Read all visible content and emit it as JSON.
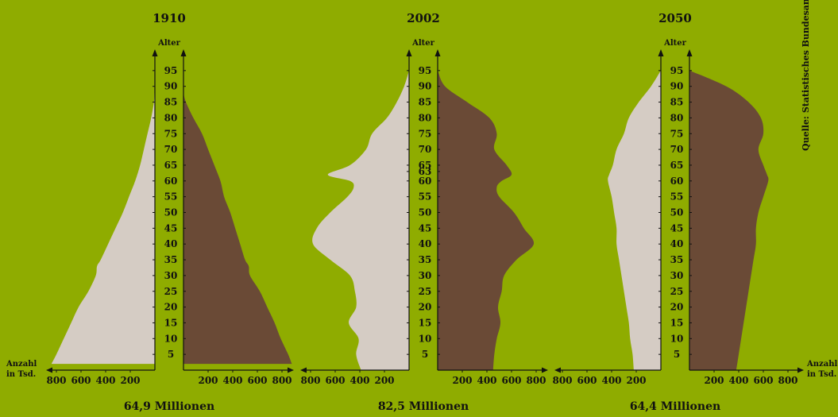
{
  "source": "Quelle: Statistisches Bundesamt",
  "axis_left_label": [
    "Anzahl",
    "in Tsd."
  ],
  "axis_right_label": [
    "Anzahl",
    "in Tsd."
  ],
  "colors": {
    "background": "#8fac00",
    "left_shape": "#d5ccc4",
    "right_shape": "#6a4a36",
    "axis": "#111111"
  },
  "chart_data": [
    {
      "type": "area",
      "title": "1910",
      "ylabel": "Alter",
      "total": "64,9 Millionen",
      "age_ticks": [
        5,
        10,
        15,
        20,
        25,
        30,
        35,
        40,
        45,
        50,
        55,
        60,
        65,
        70,
        75,
        80,
        85,
        90,
        95
      ],
      "x_ticks": [
        200,
        400,
        600,
        800
      ],
      "age_range": [
        0,
        95
      ],
      "age": [
        2,
        5,
        10,
        15,
        20,
        25,
        30,
        33,
        35,
        40,
        45,
        50,
        55,
        60,
        65,
        70,
        75,
        80,
        85,
        88,
        90
      ],
      "left_values": [
        840,
        800,
        740,
        680,
        620,
        540,
        480,
        470,
        440,
        380,
        320,
        260,
        210,
        160,
        120,
        90,
        60,
        30,
        8,
        3,
        0
      ],
      "right_values": [
        880,
        850,
        790,
        740,
        680,
        620,
        540,
        530,
        500,
        460,
        420,
        380,
        330,
        300,
        250,
        200,
        150,
        80,
        20,
        0,
        0
      ]
    },
    {
      "type": "area",
      "title": "2002",
      "ylabel": "Alter",
      "total": "82,5 Millionen",
      "age_ticks": [
        5,
        10,
        15,
        20,
        25,
        30,
        35,
        40,
        45,
        50,
        55,
        60,
        63,
        65,
        70,
        75,
        80,
        85,
        90,
        95
      ],
      "x_ticks": [
        200,
        400,
        600,
        800
      ],
      "age_range": [
        0,
        95
      ],
      "age": [
        0,
        5,
        10,
        15,
        20,
        25,
        30,
        35,
        40,
        45,
        50,
        55,
        58,
        60,
        62,
        65,
        70,
        75,
        80,
        85,
        90,
        95
      ],
      "left_values": [
        390,
        430,
        410,
        490,
        430,
        440,
        480,
        640,
        780,
        750,
        640,
        500,
        450,
        480,
        660,
        480,
        350,
        300,
        180,
        100,
        40,
        0
      ],
      "right_values": [
        450,
        460,
        480,
        510,
        490,
        520,
        540,
        640,
        780,
        700,
        620,
        500,
        480,
        520,
        600,
        560,
        460,
        480,
        420,
        240,
        60,
        0
      ]
    },
    {
      "type": "area",
      "title": "2050",
      "ylabel": "Alter",
      "total": "64,4 Millionen",
      "age_ticks": [
        5,
        10,
        15,
        20,
        25,
        30,
        35,
        40,
        45,
        50,
        55,
        60,
        65,
        70,
        75,
        80,
        85,
        90,
        95
      ],
      "x_ticks": [
        200,
        400,
        600,
        800
      ],
      "age_range": [
        0,
        95
      ],
      "age": [
        0,
        5,
        10,
        15,
        20,
        25,
        30,
        35,
        40,
        45,
        50,
        55,
        60,
        62,
        65,
        70,
        75,
        80,
        85,
        90,
        95
      ],
      "left_values": [
        220,
        230,
        250,
        260,
        280,
        300,
        320,
        340,
        360,
        360,
        380,
        400,
        430,
        420,
        390,
        360,
        300,
        260,
        180,
        80,
        0
      ],
      "right_values": [
        380,
        400,
        420,
        440,
        460,
        480,
        500,
        520,
        540,
        540,
        560,
        600,
        640,
        630,
        600,
        560,
        600,
        580,
        480,
        300,
        0
      ]
    }
  ]
}
